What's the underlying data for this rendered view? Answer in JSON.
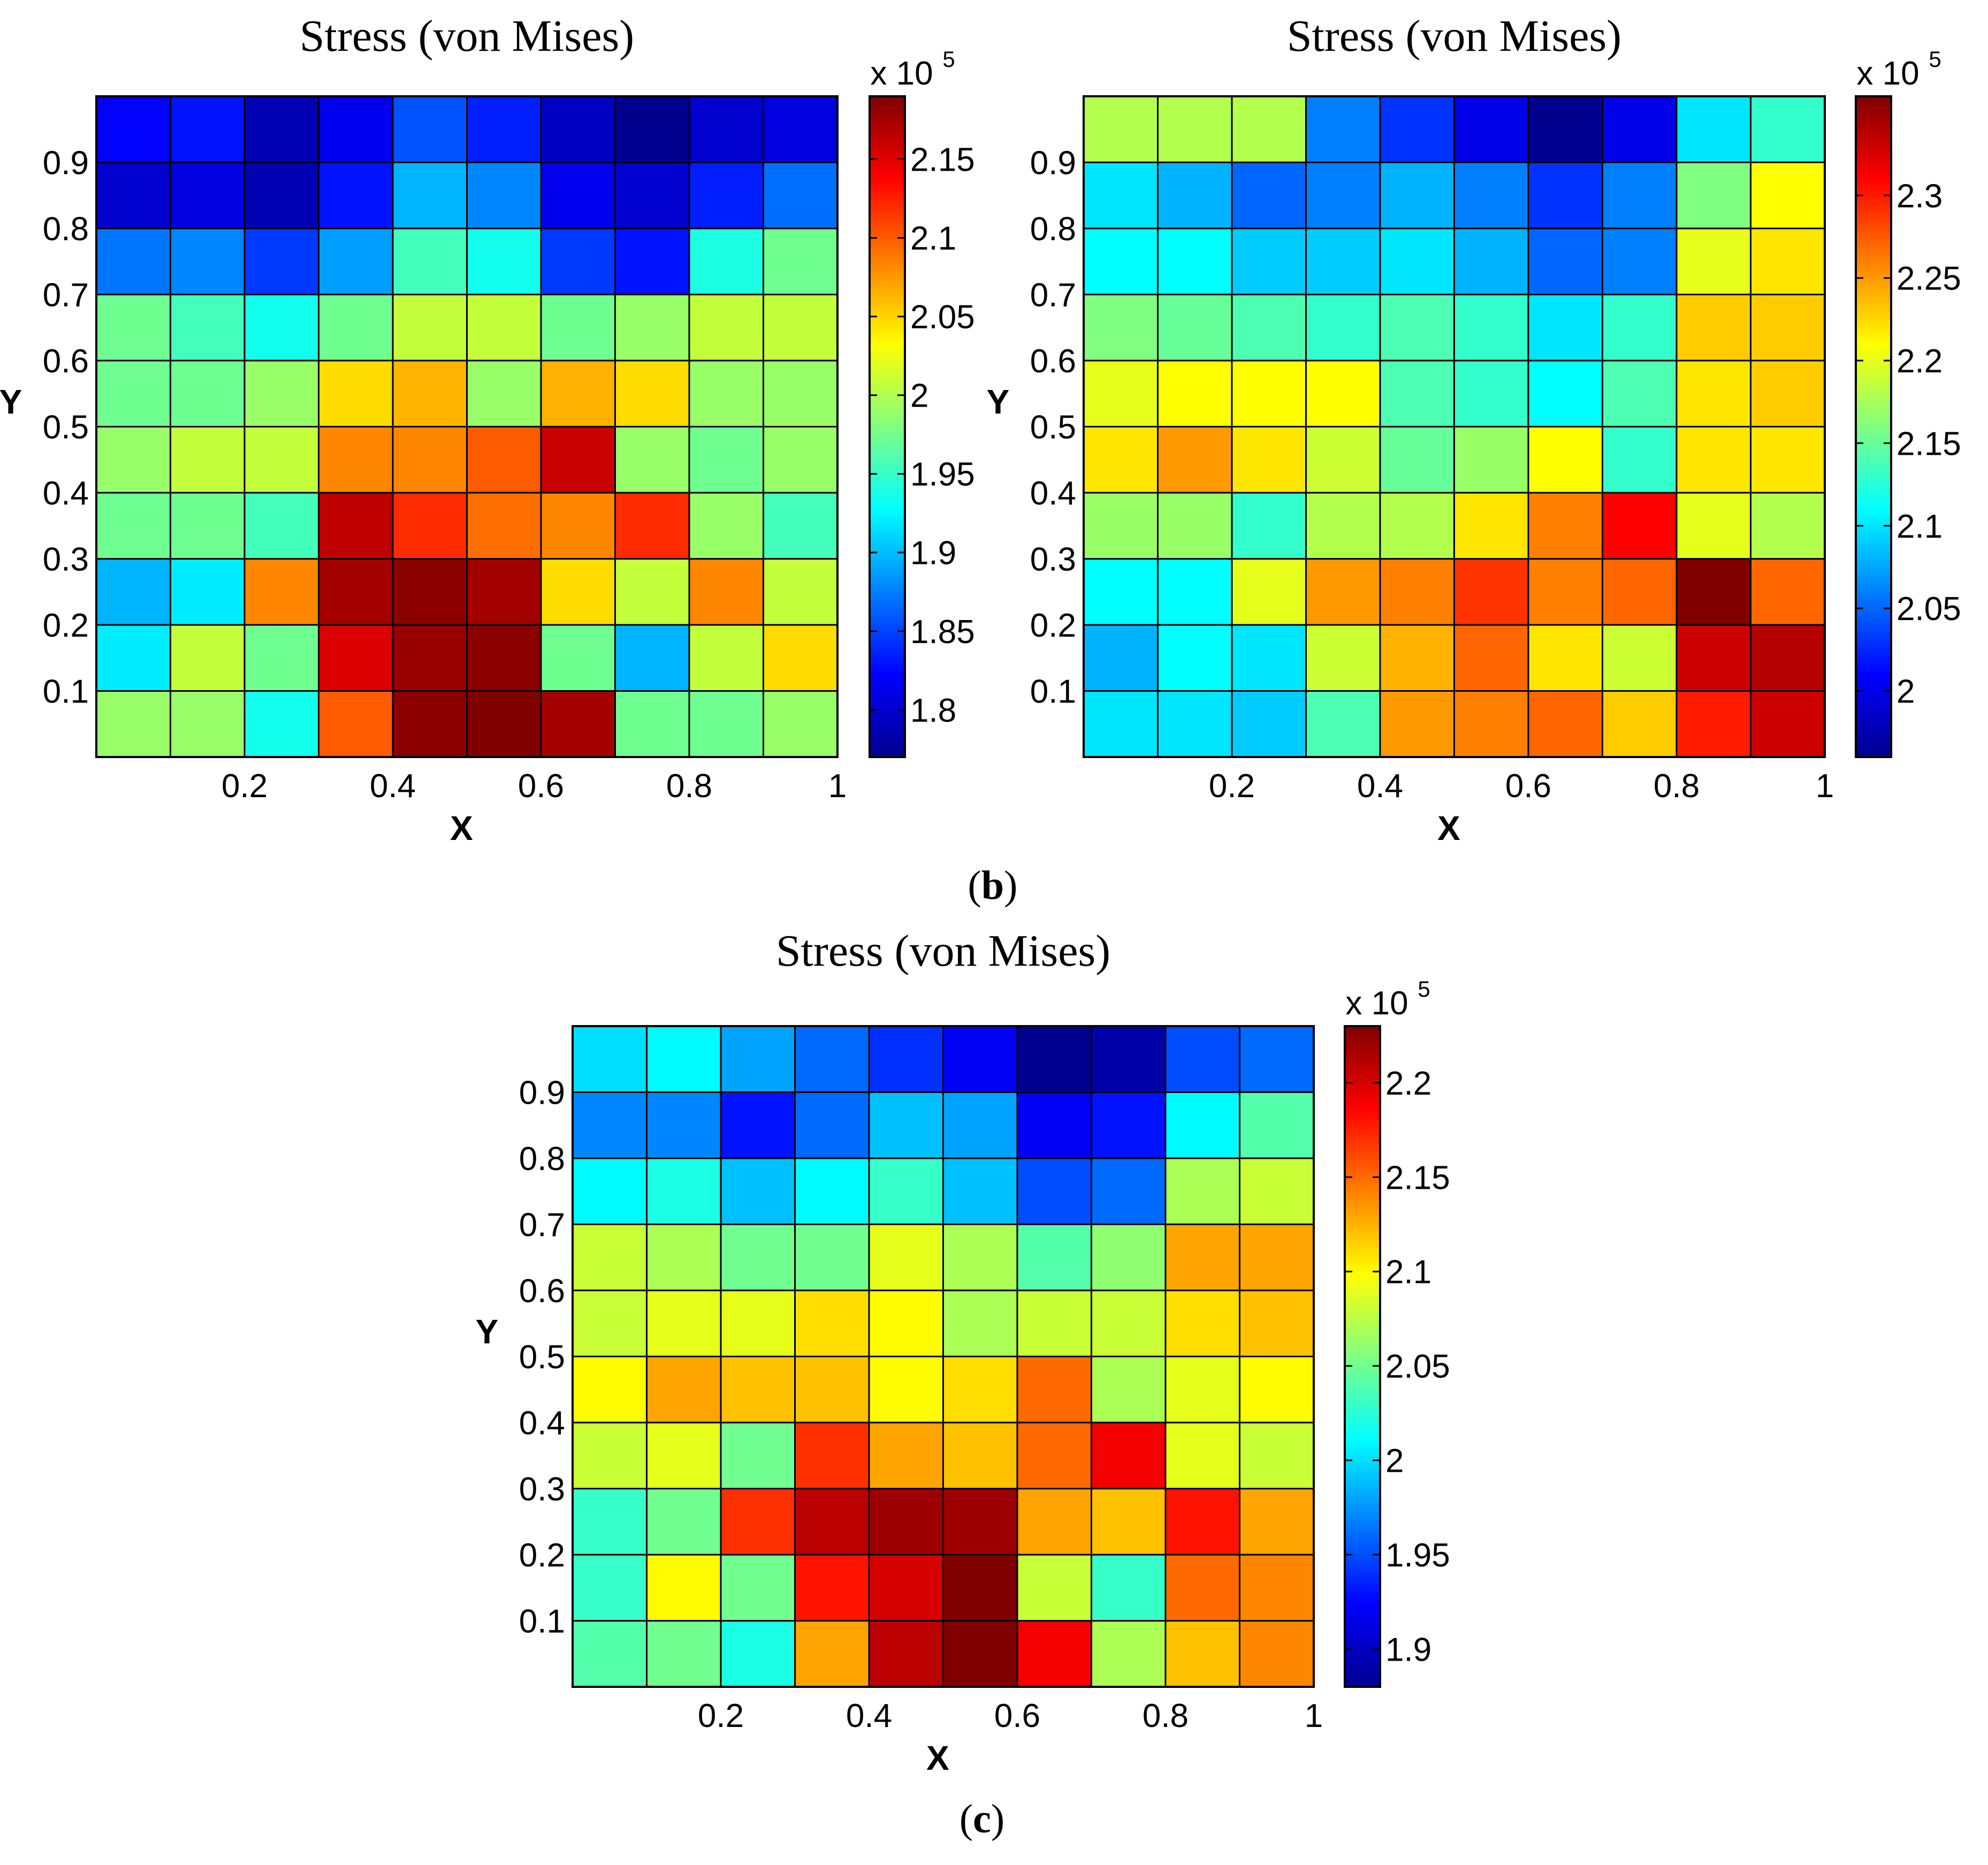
{
  "captions": {
    "b": "b",
    "c": "c"
  },
  "colormap": [
    "#00008f",
    "#0000ff",
    "#0080ff",
    "#00ffff",
    "#80ff80",
    "#ffff00",
    "#ff8000",
    "#ff0000",
    "#800000"
  ],
  "chart_data": [
    {
      "id": "left",
      "type": "heatmap",
      "title": "Stress (von Mises)",
      "xlabel": "X",
      "ylabel": "Y",
      "xlim": [
        0,
        1
      ],
      "ylim": [
        0,
        1
      ],
      "xticks": [
        0.2,
        0.4,
        0.6,
        0.8,
        1
      ],
      "xtick_labels": [
        "0.2",
        "0.4",
        "0.6",
        "0.8",
        "1"
      ],
      "yticks": [
        0.1,
        0.2,
        0.3,
        0.4,
        0.5,
        0.6,
        0.7,
        0.8,
        0.9
      ],
      "ytick_labels": [
        "0.1",
        "0.2",
        "0.3",
        "0.4",
        "0.5",
        "0.6",
        "0.7",
        "0.8",
        "0.9"
      ],
      "colorbar": {
        "range": [
          1.77,
          2.19
        ],
        "ticks": [
          1.8,
          1.85,
          1.9,
          1.95,
          2.0,
          2.05,
          2.1,
          2.15
        ],
        "tick_labels": [
          "1.8",
          "1.85",
          "1.9",
          "1.95",
          "2",
          "2.05",
          "2.1",
          "2.15"
        ],
        "multiplier_base": "x 10",
        "multiplier_exp": "5"
      },
      "z_rows_top_to_bottom": [
        [
          1.823,
          1.83,
          1.788,
          1.815,
          1.857,
          1.835,
          1.795,
          1.77,
          1.8,
          1.808
        ],
        [
          1.8,
          1.808,
          1.788,
          1.83,
          1.897,
          1.878,
          1.815,
          1.8,
          1.835,
          1.868
        ],
        [
          1.871,
          1.878,
          1.846,
          1.888,
          1.955,
          1.935,
          1.846,
          1.83,
          1.939,
          1.973
        ],
        [
          1.973,
          1.955,
          1.935,
          1.973,
          2.008,
          2.008,
          1.973,
          1.99,
          2.008,
          2.008
        ],
        [
          1.973,
          1.973,
          1.99,
          2.047,
          2.063,
          1.99,
          2.065,
          2.047,
          1.99,
          1.99
        ],
        [
          1.99,
          2.008,
          2.008,
          2.082,
          2.082,
          2.1,
          2.16,
          1.99,
          1.973,
          1.99
        ],
        [
          1.973,
          1.973,
          1.955,
          2.164,
          2.12,
          2.092,
          2.082,
          2.12,
          1.99,
          1.955
        ],
        [
          1.897,
          1.92,
          2.082,
          2.175,
          2.185,
          2.175,
          2.047,
          2.008,
          2.082,
          2.008
        ],
        [
          1.92,
          2.008,
          1.973,
          2.152,
          2.18,
          2.185,
          1.973,
          1.897,
          2.008,
          2.047
        ],
        [
          1.99,
          1.99,
          1.935,
          2.1,
          2.185,
          2.19,
          2.175,
          1.973,
          1.973,
          1.99
        ]
      ]
    },
    {
      "id": "right",
      "type": "heatmap",
      "title": "Stress (von Mises)",
      "xlabel": "X",
      "ylabel": "Y",
      "xlim": [
        0,
        1
      ],
      "ylim": [
        0,
        1
      ],
      "xticks": [
        0.2,
        0.4,
        0.6,
        0.8,
        1
      ],
      "xtick_labels": [
        "0.2",
        "0.4",
        "0.6",
        "0.8",
        "1"
      ],
      "yticks": [
        0.1,
        0.2,
        0.3,
        0.4,
        0.5,
        0.6,
        0.7,
        0.8,
        0.9
      ],
      "ytick_labels": [
        "0.1",
        "0.2",
        "0.3",
        "0.4",
        "0.5",
        "0.6",
        "0.7",
        "0.8",
        "0.9"
      ],
      "colorbar": {
        "range": [
          1.96,
          2.36
        ],
        "ticks": [
          2.0,
          2.05,
          2.1,
          2.15,
          2.2,
          2.25,
          2.3
        ],
        "tick_labels": [
          "2",
          "2.05",
          "2.1",
          "2.15",
          "2.2",
          "2.25",
          "2.3"
        ],
        "multiplier_base": "x 10",
        "multiplier_exp": "5"
      },
      "z_rows_top_to_bottom": [
        [
          2.18,
          2.18,
          2.18,
          2.06,
          2.03,
          2.0,
          1.96,
          2.0,
          2.1,
          2.13
        ],
        [
          2.1,
          2.08,
          2.05,
          2.06,
          2.08,
          2.06,
          2.03,
          2.06,
          2.16,
          2.21
        ],
        [
          2.11,
          2.11,
          2.09,
          2.09,
          2.1,
          2.08,
          2.05,
          2.06,
          2.2,
          2.22
        ],
        [
          2.16,
          2.15,
          2.14,
          2.13,
          2.14,
          2.13,
          2.1,
          2.13,
          2.23,
          2.23
        ],
        [
          2.2,
          2.21,
          2.21,
          2.21,
          2.14,
          2.13,
          2.11,
          2.14,
          2.22,
          2.23
        ],
        [
          2.22,
          2.25,
          2.22,
          2.19,
          2.15,
          2.17,
          2.21,
          2.13,
          2.22,
          2.22
        ],
        [
          2.17,
          2.17,
          2.13,
          2.18,
          2.18,
          2.22,
          2.26,
          2.31,
          2.2,
          2.18
        ],
        [
          2.11,
          2.11,
          2.2,
          2.25,
          2.26,
          2.29,
          2.26,
          2.27,
          2.36,
          2.27
        ],
        [
          2.08,
          2.11,
          2.1,
          2.19,
          2.24,
          2.27,
          2.22,
          2.19,
          2.33,
          2.34
        ],
        [
          2.1,
          2.1,
          2.09,
          2.14,
          2.25,
          2.26,
          2.27,
          2.23,
          2.3,
          2.33
        ]
      ]
    },
    {
      "id": "bottom",
      "type": "heatmap",
      "title": "Stress (von Mises)",
      "xlabel": "X",
      "ylabel": "Y",
      "xlim": [
        0,
        1
      ],
      "ylim": [
        0,
        1
      ],
      "xticks": [
        0.2,
        0.4,
        0.6,
        0.8,
        1
      ],
      "xtick_labels": [
        "0.2",
        "0.4",
        "0.6",
        "0.8",
        "1"
      ],
      "yticks": [
        0.1,
        0.2,
        0.3,
        0.4,
        0.5,
        0.6,
        0.7,
        0.8,
        0.9
      ],
      "ytick_labels": [
        "0.1",
        "0.2",
        "0.3",
        "0.4",
        "0.5",
        "0.6",
        "0.7",
        "0.8",
        "0.9"
      ],
      "colorbar": {
        "range": [
          1.88,
          2.23
        ],
        "ticks": [
          1.9,
          1.95,
          2.0,
          2.05,
          2.1,
          2.15,
          2.2
        ],
        "tick_labels": [
          "1.9",
          "1.95",
          "2",
          "2.05",
          "2.1",
          "2.15",
          "2.2"
        ],
        "multiplier_base": "x 10",
        "multiplier_exp": "5"
      },
      "z_rows_top_to_bottom": [
        [
          2.0,
          2.01,
          1.98,
          1.96,
          1.94,
          1.92,
          1.88,
          1.89,
          1.95,
          1.96
        ],
        [
          1.97,
          1.97,
          1.93,
          1.96,
          1.99,
          1.98,
          1.92,
          1.93,
          2.01,
          2.04
        ],
        [
          2.01,
          2.02,
          1.99,
          2.01,
          2.03,
          1.99,
          1.95,
          1.96,
          2.07,
          2.08
        ],
        [
          2.08,
          2.07,
          2.05,
          2.05,
          2.09,
          2.07,
          2.04,
          2.06,
          2.13,
          2.13
        ],
        [
          2.08,
          2.09,
          2.09,
          2.11,
          2.1,
          2.07,
          2.08,
          2.08,
          2.11,
          2.12
        ],
        [
          2.1,
          2.13,
          2.12,
          2.12,
          2.1,
          2.11,
          2.15,
          2.07,
          2.09,
          2.1
        ],
        [
          2.08,
          2.09,
          2.05,
          2.17,
          2.13,
          2.12,
          2.15,
          2.19,
          2.09,
          2.08
        ],
        [
          2.03,
          2.05,
          2.17,
          2.21,
          2.22,
          2.22,
          2.13,
          2.12,
          2.18,
          2.13
        ],
        [
          2.03,
          2.1,
          2.05,
          2.18,
          2.2,
          2.23,
          2.08,
          2.03,
          2.15,
          2.14
        ],
        [
          2.04,
          2.05,
          2.02,
          2.13,
          2.21,
          2.23,
          2.19,
          2.07,
          2.12,
          2.14
        ]
      ]
    }
  ]
}
